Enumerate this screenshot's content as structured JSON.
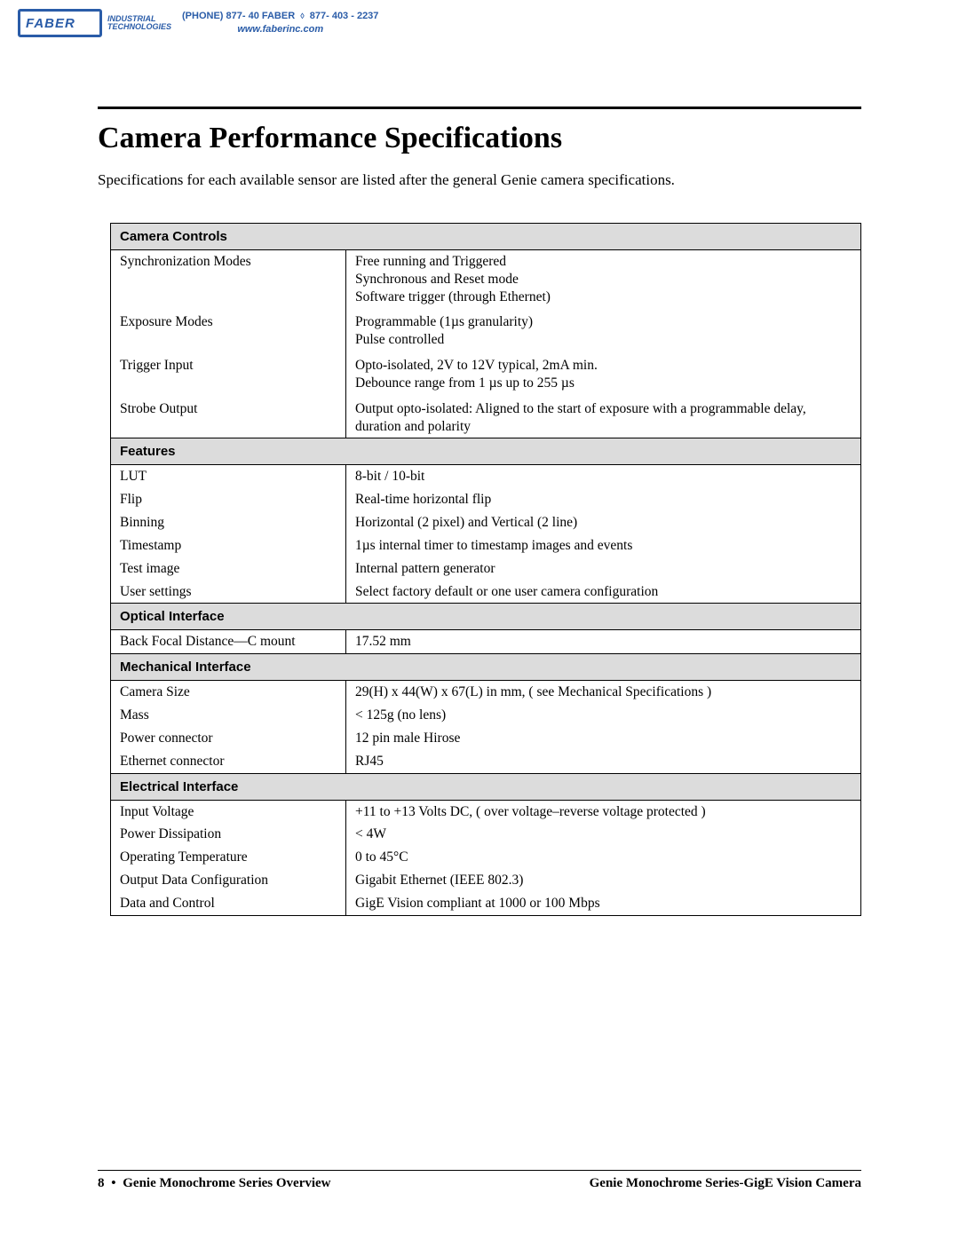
{
  "header": {
    "logo_text": "FABER",
    "logo_sub1": "INDUSTRIAL",
    "logo_sub2": "TECHNOLOGIES",
    "phone_label": "(PHONE) 877- 40 FABER",
    "phone_sep": "◊",
    "phone_alt": "877- 403 - 2237",
    "site": "www.faberinc.com"
  },
  "title": "Camera Performance Specifications",
  "intro": "Specifications for each available sensor are listed after the general Genie camera specifications.",
  "sections": {
    "camera_controls": {
      "heading": "Camera Controls",
      "rows": [
        {
          "label": "Synchronization Modes",
          "value": "Free running and Triggered\nSynchronous and Reset mode\nSoftware trigger (through Ethernet)"
        },
        {
          "label": "Exposure Modes",
          "value": "Programmable (1µs granularity)\nPulse controlled"
        },
        {
          "label": "Trigger Input",
          "value": "Opto-isolated, 2V to 12V typical, 2mA min.\nDebounce range from 1 µs up to 255 µs"
        },
        {
          "label": "Strobe Output",
          "value": "Output opto-isolated: Aligned to the start of exposure with a programmable delay, duration and polarity"
        }
      ]
    },
    "features": {
      "heading": "Features",
      "rows": [
        {
          "label": "LUT",
          "value": "8-bit / 10-bit"
        },
        {
          "label": "Flip",
          "value": "Real-time horizontal flip"
        },
        {
          "label": "Binning",
          "value": "Horizontal (2 pixel) and Vertical (2 line)"
        },
        {
          "label": "Timestamp",
          "value": "1µs internal timer to timestamp images and events"
        },
        {
          "label": "Test image",
          "value": "Internal pattern generator"
        },
        {
          "label": "User settings",
          "value": "Select factory default or one user camera configuration"
        }
      ]
    },
    "optical": {
      "heading": "Optical Interface",
      "rows": [
        {
          "label": "Back Focal Distance—C mount",
          "value": "17.52 mm"
        }
      ]
    },
    "mechanical": {
      "heading": "Mechanical Interface",
      "rows": [
        {
          "label": "Camera Size",
          "value": "29(H) x 44(W) x 67(L) in mm, ( see Mechanical Specifications )"
        },
        {
          "label": "Mass",
          "value": "< 125g (no lens)"
        },
        {
          "label": "Power connector",
          "value": "12 pin male Hirose"
        },
        {
          "label": "Ethernet connector",
          "value": "RJ45"
        }
      ]
    },
    "electrical": {
      "heading": "Electrical Interface",
      "rows": [
        {
          "label": "Input Voltage",
          "value": "+11 to +13 Volts DC,  ( over voltage–reverse voltage protected )"
        },
        {
          "label": "Power Dissipation",
          "value": "< 4W"
        },
        {
          "label": "Operating Temperature",
          "value": "0 to 45°C"
        },
        {
          "label": "Output Data Configuration",
          "value": "Gigabit Ethernet (IEEE 802.3)"
        },
        {
          "label": "Data and Control",
          "value": "GigE Vision compliant at 1000 or 100 Mbps"
        }
      ]
    }
  },
  "footer": {
    "page_number": "8",
    "bullet": "•",
    "left_text": "Genie Monochrome Series Overview",
    "right_text": "Genie Monochrome Series-GigE Vision Camera"
  }
}
